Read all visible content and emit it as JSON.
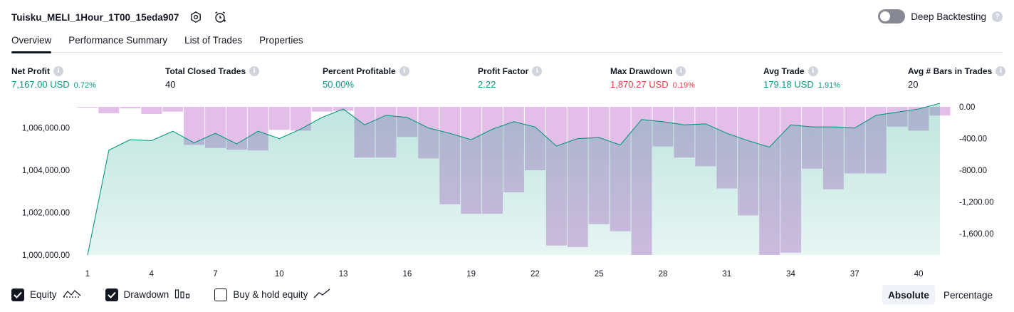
{
  "header": {
    "strategy_name": "Tuisku_MELI_1Hour_1T00_15eda907",
    "settings_icon": "gear-icon",
    "alert_icon": "add-alert-icon"
  },
  "deep_backtesting": {
    "label": "Deep Backtesting",
    "enabled": false
  },
  "tabs": [
    {
      "label": "Overview",
      "active": true
    },
    {
      "label": "Performance Summary",
      "active": false
    },
    {
      "label": "List of Trades",
      "active": false
    },
    {
      "label": "Properties",
      "active": false
    }
  ],
  "metrics": [
    {
      "label": "Net Profit",
      "value": "7,167.00 USD",
      "pct": "0.72%",
      "color": "green"
    },
    {
      "label": "Total Closed Trades",
      "value": "40",
      "pct": "",
      "color": "dark"
    },
    {
      "label": "Percent Profitable",
      "value": "50.00%",
      "pct": "",
      "color": "green"
    },
    {
      "label": "Profit Factor",
      "value": "2.22",
      "pct": "",
      "color": "green"
    },
    {
      "label": "Max Drawdown",
      "value": "1,870.27 USD",
      "pct": "0.19%",
      "color": "red"
    },
    {
      "label": "Avg Trade",
      "value": "179.18 USD",
      "pct": "1.91%",
      "color": "green"
    },
    {
      "label": "Avg # Bars in Trades",
      "value": "20",
      "pct": "",
      "color": "dark"
    }
  ],
  "chart_data": {
    "type": "line",
    "x_ticks": [
      1,
      4,
      7,
      10,
      13,
      16,
      19,
      22,
      25,
      28,
      31,
      34,
      37,
      40
    ],
    "left_axis": {
      "ticks": [
        "1,000,000.00",
        "1,002,000.00",
        "1,004,000.00",
        "1,006,000.00"
      ],
      "range": [
        1000000,
        1007000
      ]
    },
    "right_axis": {
      "ticks": [
        "0.00",
        "-400.00",
        "-800.00",
        "-1,200.00",
        "-1,600.00"
      ],
      "range": [
        -1870,
        0
      ]
    },
    "series": [
      {
        "name": "Equity",
        "x": [
          1,
          2,
          3,
          4,
          5,
          6,
          7,
          8,
          9,
          10,
          11,
          12,
          13,
          14,
          15,
          16,
          17,
          18,
          19,
          20,
          21,
          22,
          23,
          24,
          25,
          26,
          27,
          28,
          29,
          30,
          31,
          32,
          33,
          34,
          35,
          36,
          37,
          38,
          39,
          40,
          41
        ],
        "values": [
          1000000,
          1004950,
          1005450,
          1005400,
          1005850,
          1005300,
          1005750,
          1005250,
          1005850,
          1005500,
          1005950,
          1006500,
          1006900,
          1006150,
          1006600,
          1006500,
          1006000,
          1005750,
          1005450,
          1005950,
          1006300,
          1006050,
          1005150,
          1005500,
          1005550,
          1005200,
          1006400,
          1006300,
          1006150,
          1006200,
          1005750,
          1005400,
          1005100,
          1006150,
          1006050,
          1006050,
          1006000,
          1006600,
          1006750,
          1006900,
          1007167
        ]
      },
      {
        "name": "Drawdown",
        "x": [
          1,
          2,
          3,
          4,
          5,
          6,
          7,
          8,
          9,
          10,
          11,
          12,
          13,
          14,
          15,
          16,
          17,
          18,
          19,
          20,
          21,
          22,
          23,
          24,
          25,
          26,
          27,
          28,
          29,
          30,
          31,
          32,
          33,
          34,
          35,
          36,
          37,
          38,
          39,
          40,
          41
        ],
        "values": [
          -10,
          -80,
          -20,
          -90,
          -60,
          -480,
          -520,
          -540,
          -550,
          -290,
          -300,
          -60,
          -50,
          -640,
          -640,
          -380,
          -650,
          -1230,
          -1350,
          -1350,
          -1080,
          -800,
          -1750,
          -1770,
          -1480,
          -1570,
          -1870,
          -500,
          -640,
          -750,
          -1030,
          -1370,
          -1870,
          -1840,
          -780,
          -1040,
          -840,
          -840,
          -250,
          -300,
          -110
        ]
      }
    ],
    "colors": {
      "equity_line": "#089981",
      "drawdown_bar": "#ce93d8"
    }
  },
  "legend": [
    {
      "label": "Equity",
      "checked": true,
      "icon": "equity-line-icon"
    },
    {
      "label": "Drawdown",
      "checked": true,
      "icon": "drawdown-bars-icon"
    },
    {
      "label": "Buy & hold equity",
      "checked": false,
      "icon": "buy-hold-line-icon"
    }
  ],
  "mode": {
    "absolute": "Absolute",
    "percentage": "Percentage",
    "active": "absolute"
  }
}
